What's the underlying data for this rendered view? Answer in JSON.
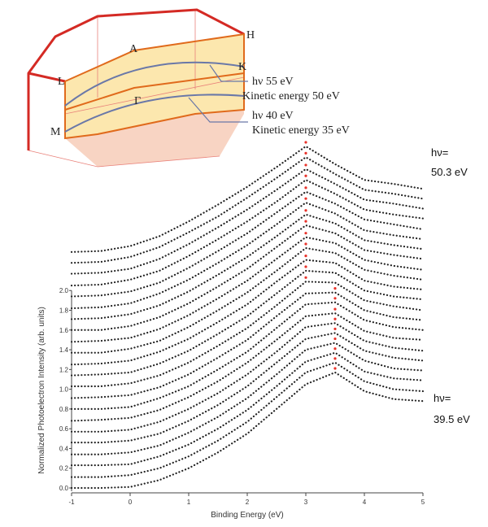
{
  "chart_data": {
    "type": "waterfall",
    "x_label": "Binding Energy (eV)",
    "y_label": "Normalized Photoelectron Intensity (arb. units)",
    "x": [
      -1,
      -0.5,
      0,
      0.5,
      1,
      1.5,
      2,
      2.5,
      3,
      3.5,
      4,
      4.5,
      5
    ],
    "xlim": [
      -1,
      5
    ],
    "xticks": [
      -1,
      0,
      1,
      2,
      3,
      4,
      5
    ],
    "ylim": [
      0,
      3.6
    ],
    "yticks": [
      {
        "value": 0,
        "label": "0.0"
      },
      {
        "value": 0.2,
        "label": "0.2"
      },
      {
        "value": 0.4,
        "label": "0.4"
      },
      {
        "value": 0.6,
        "label": "0.6"
      },
      {
        "value": 0.8,
        "label": "0.8"
      },
      {
        "value": 1.0,
        "label": "1.0"
      },
      {
        "value": 1.2,
        "label": "1.2"
      },
      {
        "value": 1.4,
        "label": "1.4"
      },
      {
        "value": 1.6,
        "label": "1.6"
      },
      {
        "value": 1.8,
        "label": "1.8"
      },
      {
        "value": 2.0,
        "label": "2.0"
      }
    ],
    "color": "#222222",
    "peak_color": "#e8322a",
    "series": [
      {
        "values": [
          0,
          0,
          0.01,
          0.08,
          0.2,
          0.36,
          0.55,
          0.8,
          1.05,
          1.17,
          0.98,
          0.9,
          0.88
        ]
      },
      {
        "values": [
          0.11,
          0.11,
          0.13,
          0.2,
          0.32,
          0.48,
          0.67,
          0.92,
          1.17,
          1.27,
          1.08,
          1.0,
          0.98
        ]
      },
      {
        "values": [
          0.23,
          0.23,
          0.24,
          0.32,
          0.44,
          0.6,
          0.79,
          1.03,
          1.28,
          1.37,
          1.18,
          1.11,
          1.09
        ]
      },
      {
        "values": [
          0.34,
          0.34,
          0.36,
          0.43,
          0.56,
          0.72,
          0.91,
          1.15,
          1.4,
          1.47,
          1.29,
          1.21,
          1.19
        ]
      },
      {
        "values": [
          0.46,
          0.46,
          0.48,
          0.55,
          0.68,
          0.84,
          1.03,
          1.27,
          1.51,
          1.57,
          1.39,
          1.32,
          1.29
        ]
      },
      {
        "values": [
          0.57,
          0.57,
          0.59,
          0.67,
          0.8,
          0.96,
          1.15,
          1.38,
          1.63,
          1.67,
          1.49,
          1.42,
          1.39
        ]
      },
      {
        "values": [
          0.68,
          0.69,
          0.71,
          0.79,
          0.92,
          1.08,
          1.27,
          1.5,
          1.74,
          1.77,
          1.59,
          1.52,
          1.5
        ]
      },
      {
        "values": [
          0.8,
          0.8,
          0.82,
          0.91,
          1.03,
          1.2,
          1.38,
          1.62,
          1.86,
          1.88,
          1.7,
          1.63,
          1.6
        ]
      },
      {
        "values": [
          0.91,
          0.92,
          0.94,
          1.02,
          1.15,
          1.32,
          1.5,
          1.74,
          1.97,
          1.98,
          1.8,
          1.73,
          1.7
        ]
      },
      {
        "values": [
          1.03,
          1.03,
          1.06,
          1.14,
          1.27,
          1.44,
          1.62,
          1.85,
          2.09,
          2.08,
          1.9,
          1.84,
          1.8
        ]
      },
      {
        "values": [
          1.14,
          1.15,
          1.17,
          1.26,
          1.39,
          1.56,
          1.74,
          1.97,
          2.2,
          2.18,
          2.0,
          1.94,
          1.91
        ]
      },
      {
        "values": [
          1.25,
          1.26,
          1.29,
          1.38,
          1.51,
          1.68,
          1.86,
          2.09,
          2.31,
          2.28,
          2.1,
          2.04,
          2.01
        ]
      },
      {
        "values": [
          1.37,
          1.37,
          1.41,
          1.49,
          1.63,
          1.8,
          1.98,
          2.2,
          2.43,
          2.38,
          2.21,
          2.15,
          2.11
        ]
      },
      {
        "values": [
          1.48,
          1.49,
          1.52,
          1.61,
          1.75,
          1.92,
          2.1,
          2.32,
          2.54,
          2.48,
          2.31,
          2.25,
          2.21
        ]
      },
      {
        "values": [
          1.6,
          1.6,
          1.64,
          1.73,
          1.87,
          2.04,
          2.22,
          2.44,
          2.66,
          2.58,
          2.41,
          2.36,
          2.32
        ]
      },
      {
        "values": [
          1.71,
          1.72,
          1.76,
          1.85,
          1.99,
          2.16,
          2.34,
          2.55,
          2.77,
          2.68,
          2.51,
          2.46,
          2.42
        ]
      },
      {
        "values": [
          1.82,
          1.83,
          1.87,
          1.97,
          2.11,
          2.28,
          2.46,
          2.67,
          2.89,
          2.78,
          2.61,
          2.56,
          2.52
        ]
      },
      {
        "values": [
          1.94,
          1.95,
          1.99,
          2.08,
          2.23,
          2.4,
          2.58,
          2.79,
          3.0,
          2.88,
          2.72,
          2.67,
          2.62
        ]
      },
      {
        "values": [
          2.05,
          2.06,
          2.11,
          2.2,
          2.35,
          2.52,
          2.7,
          2.9,
          3.12,
          2.98,
          2.82,
          2.77,
          2.73
        ]
      },
      {
        "values": [
          2.17,
          2.18,
          2.22,
          2.32,
          2.47,
          2.64,
          2.82,
          3.02,
          3.23,
          3.08,
          2.92,
          2.88,
          2.83
        ]
      },
      {
        "values": [
          2.28,
          2.29,
          2.34,
          2.44,
          2.59,
          2.75,
          2.94,
          3.14,
          3.35,
          3.18,
          3.02,
          2.98,
          2.93
        ]
      },
      {
        "values": [
          2.39,
          2.4,
          2.45,
          2.55,
          2.7,
          2.87,
          3.05,
          3.25,
          3.46,
          3.28,
          3.12,
          3.08,
          3.03
        ]
      }
    ],
    "annotations": [
      "hν=",
      "50.3 eV",
      "hν=",
      "39.5 eV"
    ],
    "inset": {
      "points": [
        "H",
        "A",
        "K",
        "L",
        "Γ",
        "M"
      ],
      "notes": [
        "hν 55 eV",
        "Kinetic energy 50 eV",
        "hν 40 eV",
        "Kinetic energy 35 eV"
      ]
    }
  }
}
